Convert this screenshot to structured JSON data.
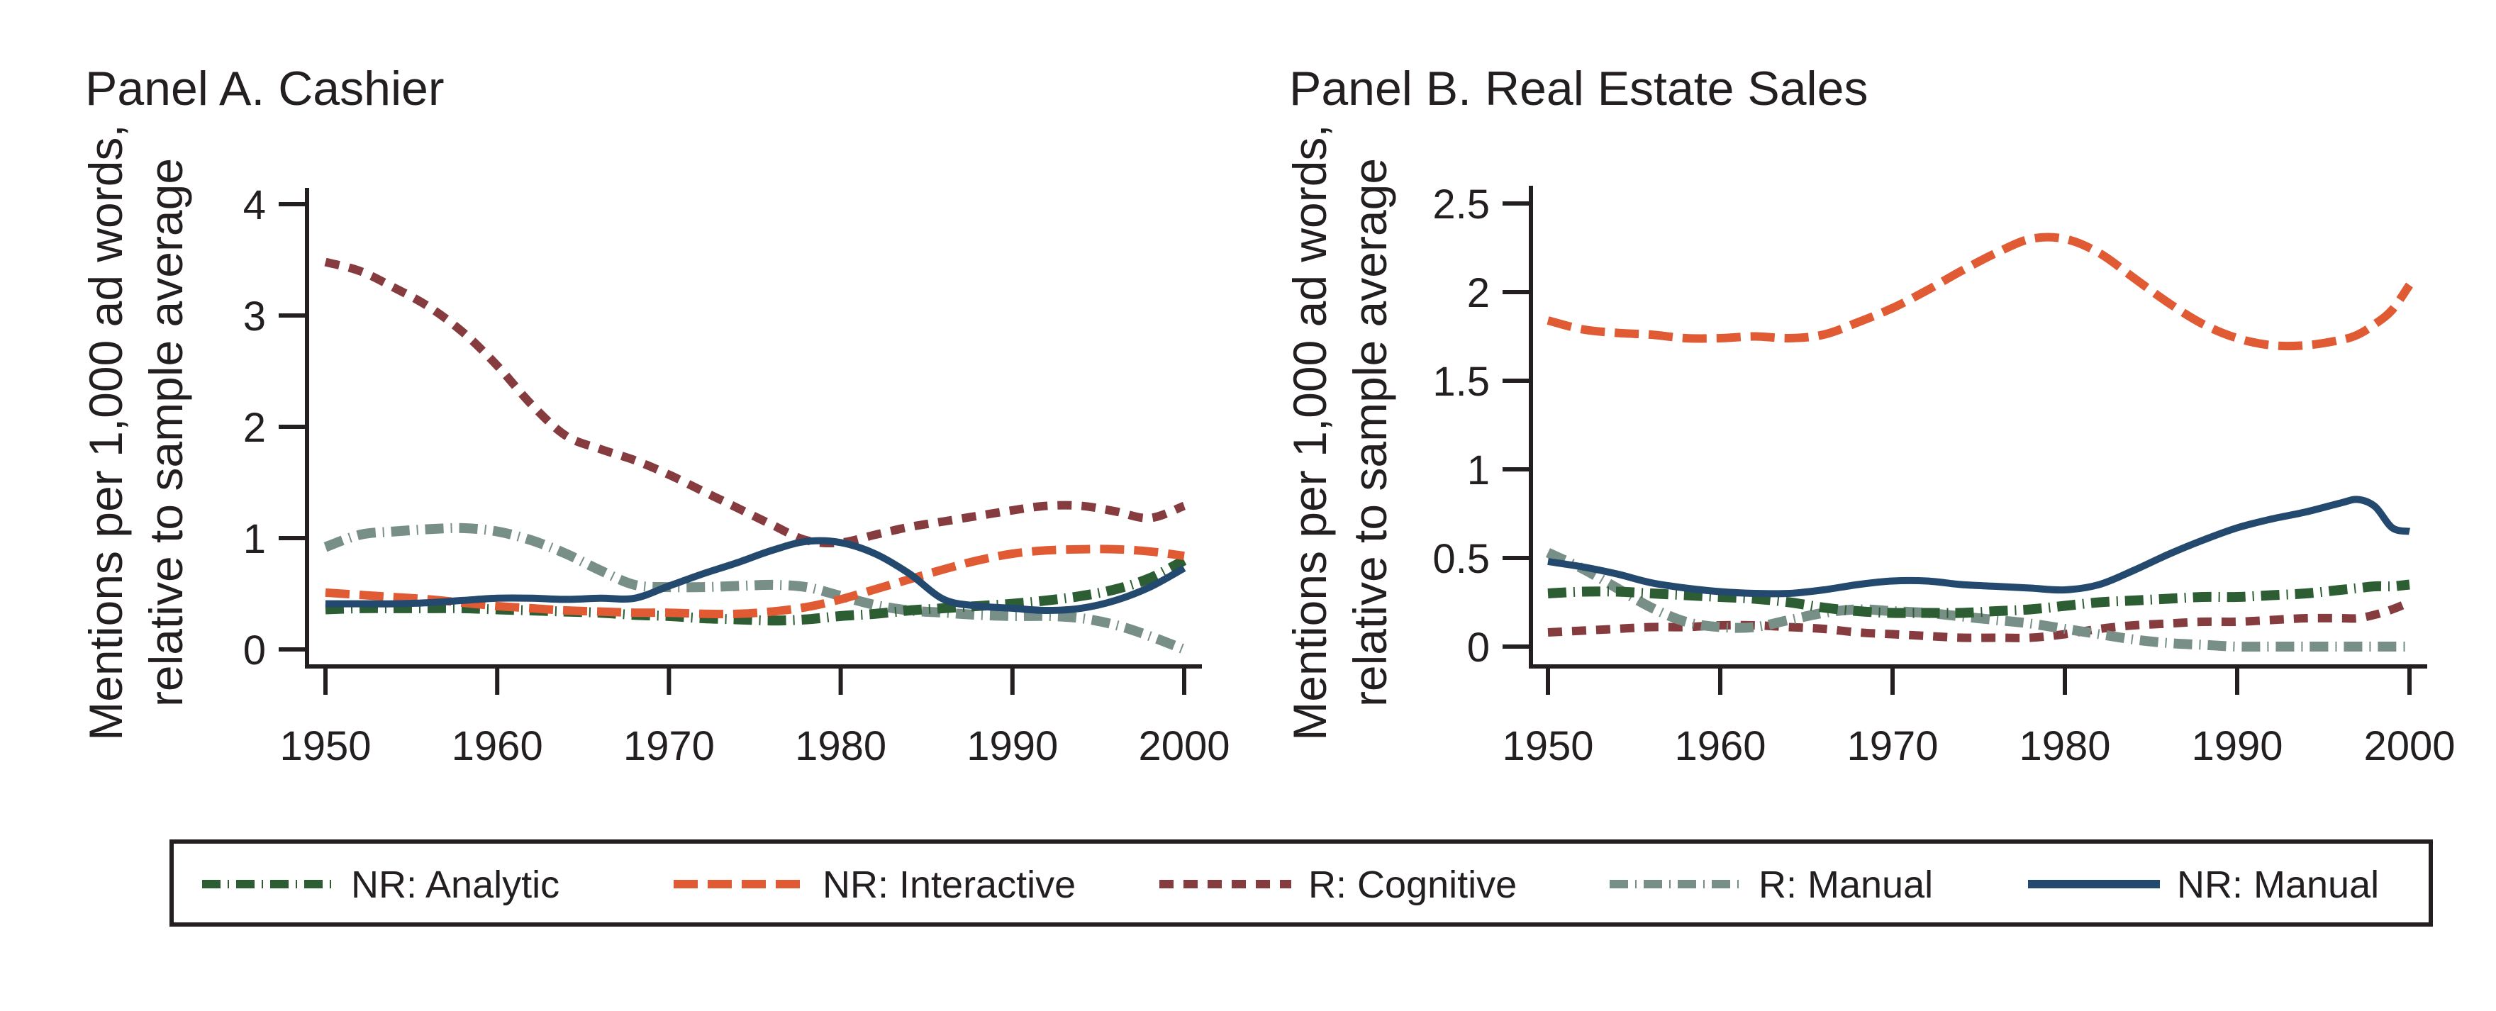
{
  "chart_data": [
    {
      "type": "line",
      "id": "panelA",
      "title": "Panel A. Cashier",
      "xlabel": "",
      "ylabel": [
        "Mentions per 1,000 ad words,",
        "relative to sample average"
      ],
      "xlim": [
        1950,
        2000
      ],
      "ylim": [
        0,
        4
      ],
      "xticks": [
        1950,
        1960,
        1970,
        1980,
        1990,
        2000
      ],
      "xtick_labels": [
        "1950",
        "1960",
        "1970",
        "1980",
        "1990",
        "2000"
      ],
      "yticks": [
        0,
        1,
        2,
        3,
        4
      ],
      "ytick_labels": [
        "0",
        "1",
        "2",
        "3",
        "4"
      ],
      "grid": false,
      "x": [
        1950,
        1952,
        1954,
        1956,
        1958,
        1960,
        1962,
        1964,
        1966,
        1968,
        1970,
        1972,
        1974,
        1976,
        1978,
        1980,
        1982,
        1984,
        1986,
        1988,
        1990,
        1992,
        1994,
        1996,
        1998,
        2000
      ],
      "series": [
        {
          "name": "NR: Analytic",
          "key": "nr_analytic",
          "values": [
            0.36,
            0.37,
            0.37,
            0.37,
            0.37,
            0.36,
            0.35,
            0.34,
            0.33,
            0.31,
            0.3,
            0.28,
            0.27,
            0.26,
            0.27,
            0.3,
            0.32,
            0.35,
            0.37,
            0.39,
            0.41,
            0.44,
            0.48,
            0.54,
            0.64,
            0.8
          ]
        },
        {
          "name": "NR: Interactive",
          "key": "nr_interactive",
          "values": [
            0.51,
            0.49,
            0.47,
            0.45,
            0.42,
            0.39,
            0.37,
            0.35,
            0.34,
            0.33,
            0.33,
            0.32,
            0.32,
            0.34,
            0.38,
            0.45,
            0.54,
            0.63,
            0.72,
            0.8,
            0.86,
            0.89,
            0.9,
            0.9,
            0.88,
            0.84
          ]
        },
        {
          "name": "R: Cognitive",
          "key": "r_cognitive",
          "values": [
            3.48,
            3.4,
            3.25,
            3.08,
            2.85,
            2.55,
            2.2,
            1.92,
            1.8,
            1.7,
            1.57,
            1.42,
            1.27,
            1.12,
            0.98,
            0.96,
            1.03,
            1.1,
            1.15,
            1.2,
            1.25,
            1.29,
            1.29,
            1.24,
            1.18,
            1.29
          ]
        },
        {
          "name": "R: Manual",
          "key": "r_manual",
          "values": [
            0.92,
            1.03,
            1.06,
            1.08,
            1.09,
            1.06,
            0.98,
            0.86,
            0.71,
            0.58,
            0.56,
            0.56,
            0.57,
            0.58,
            0.56,
            0.48,
            0.4,
            0.35,
            0.33,
            0.31,
            0.3,
            0.3,
            0.28,
            0.22,
            0.12,
            0.0
          ]
        },
        {
          "name": "NR: Manual",
          "key": "nr_manual",
          "values": [
            0.41,
            0.41,
            0.41,
            0.42,
            0.44,
            0.46,
            0.46,
            0.45,
            0.46,
            0.46,
            0.57,
            0.68,
            0.78,
            0.89,
            0.97,
            0.96,
            0.86,
            0.68,
            0.45,
            0.39,
            0.37,
            0.35,
            0.37,
            0.44,
            0.56,
            0.73
          ]
        }
      ]
    },
    {
      "type": "line",
      "id": "panelB",
      "title": "Panel B. Real Estate Sales",
      "xlabel": "",
      "ylabel": [
        "Mentions per 1,000 ad words,",
        "relative to sample average"
      ],
      "xlim": [
        1950,
        2000
      ],
      "ylim": [
        0,
        2.5
      ],
      "xticks": [
        1950,
        1960,
        1970,
        1980,
        1990,
        2000
      ],
      "xtick_labels": [
        "1950",
        "1960",
        "1970",
        "1980",
        "1990",
        "2000"
      ],
      "yticks": [
        0,
        0.5,
        1,
        1.5,
        2,
        2.5
      ],
      "ytick_labels": [
        "0",
        "0.5",
        "1",
        "1.5",
        "2",
        "2.5"
      ],
      "grid": false,
      "x": [
        1950,
        1952,
        1954,
        1956,
        1958,
        1960,
        1962,
        1964,
        1966,
        1968,
        1970,
        1972,
        1974,
        1976,
        1978,
        1980,
        1982,
        1984,
        1986,
        1988,
        1990,
        1992,
        1994,
        1996,
        1997,
        1998,
        1999,
        2000
      ],
      "series": [
        {
          "name": "NR: Analytic",
          "key": "nr_analytic",
          "values": [
            0.3,
            0.31,
            0.31,
            0.3,
            0.29,
            0.28,
            0.27,
            0.25,
            0.22,
            0.2,
            0.19,
            0.19,
            0.19,
            0.2,
            0.21,
            0.23,
            0.25,
            0.26,
            0.27,
            0.28,
            0.28,
            0.29,
            0.3,
            0.32,
            0.33,
            0.34,
            0.34,
            0.35
          ]
        },
        {
          "name": "NR: Interactive",
          "key": "nr_interactive",
          "values": [
            1.84,
            1.79,
            1.77,
            1.76,
            1.74,
            1.74,
            1.75,
            1.74,
            1.76,
            1.83,
            1.91,
            2.01,
            2.12,
            2.22,
            2.3,
            2.3,
            2.22,
            2.08,
            1.94,
            1.82,
            1.74,
            1.7,
            1.7,
            1.73,
            1.76,
            1.82,
            1.9,
            2.04
          ]
        },
        {
          "name": "R: Cognitive",
          "key": "r_cognitive",
          "values": [
            0.08,
            0.09,
            0.1,
            0.11,
            0.11,
            0.12,
            0.12,
            0.11,
            0.1,
            0.08,
            0.07,
            0.06,
            0.05,
            0.05,
            0.05,
            0.07,
            0.1,
            0.12,
            0.13,
            0.14,
            0.14,
            0.15,
            0.16,
            0.16,
            0.16,
            0.18,
            0.21,
            0.25
          ]
        },
        {
          "name": "R: Manual",
          "key": "r_manual",
          "values": [
            0.53,
            0.44,
            0.33,
            0.22,
            0.14,
            0.11,
            0.11,
            0.15,
            0.19,
            0.21,
            0.2,
            0.19,
            0.17,
            0.15,
            0.13,
            0.1,
            0.07,
            0.04,
            0.02,
            0.01,
            0.0,
            0.0,
            0.0,
            0.0,
            0.0,
            0.0,
            0.0,
            0.0
          ]
        },
        {
          "name": "NR: Manual",
          "key": "nr_manual",
          "values": [
            0.48,
            0.45,
            0.41,
            0.36,
            0.33,
            0.31,
            0.3,
            0.3,
            0.32,
            0.35,
            0.37,
            0.37,
            0.35,
            0.34,
            0.33,
            0.32,
            0.35,
            0.43,
            0.52,
            0.6,
            0.67,
            0.72,
            0.76,
            0.81,
            0.83,
            0.79,
            0.67,
            0.65
          ]
        }
      ]
    }
  ],
  "legend": {
    "placement": "bottom",
    "items": [
      {
        "key": "nr_analytic",
        "label": "NR: Analytic",
        "color": "#2d5e33",
        "style": "dash-dot"
      },
      {
        "key": "nr_interactive",
        "label": "NR: Interactive",
        "color": "#e05a33",
        "style": "long-dash"
      },
      {
        "key": "r_cognitive",
        "label": "R: Cognitive",
        "color": "#863c3f",
        "style": "short-dash"
      },
      {
        "key": "r_manual",
        "label": "R: Manual",
        "color": "#778f86",
        "style": "dash-dot"
      },
      {
        "key": "nr_manual",
        "label": "NR: Manual",
        "color": "#23496e",
        "style": "solid"
      }
    ]
  }
}
